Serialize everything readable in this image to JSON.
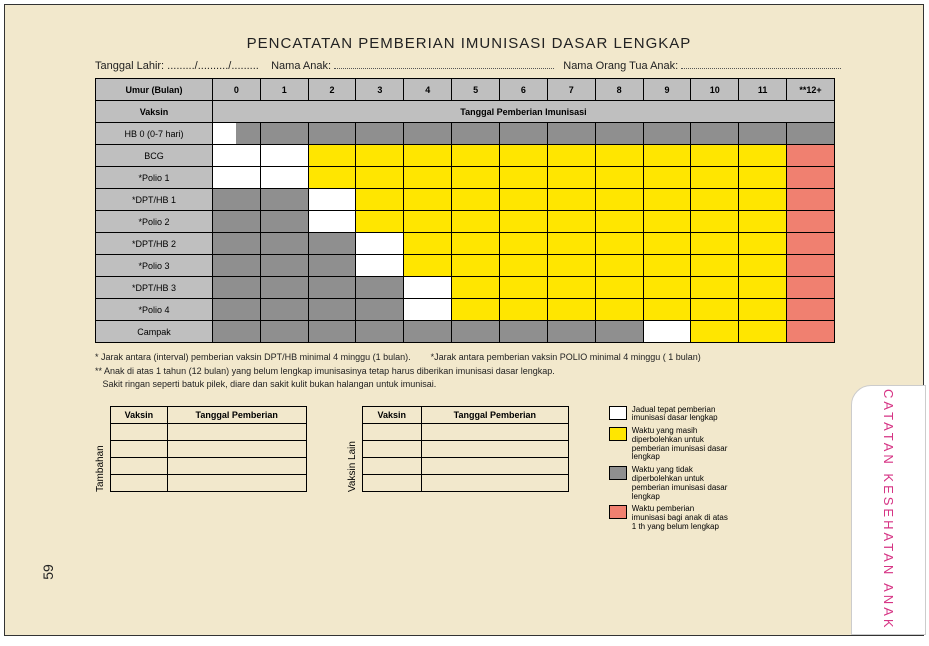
{
  "title": "PENCATATAN PEMBERIAN IMUNISASI DASAR LENGKAP",
  "header": {
    "birth_date_label": "Tanggal Lahir: ........./........../.........",
    "child_name_label": "Nama Anak:",
    "parent_name_label": "Nama Orang Tua Anak:"
  },
  "age_header": "Umur (Bulan)",
  "vaccine_header": "Vaksin",
  "schedule_header": "Tanggal Pemberian Imunisasi",
  "months": [
    "0",
    "1",
    "2",
    "3",
    "4",
    "5",
    "6",
    "7",
    "8",
    "9",
    "10",
    "11",
    "**12+"
  ],
  "colors": {
    "white": "#ffffff",
    "yellow": "#ffe600",
    "gray": "#8f8f8f",
    "salmon": "#f08070",
    "header_gray": "#bfbfbf",
    "page_bg": "#f2e8cc"
  },
  "vaccines": [
    {
      "name": "HB 0 (0-7 hari)",
      "cells": [
        "half-wg",
        "gray",
        "gray",
        "gray",
        "gray",
        "gray",
        "gray",
        "gray",
        "gray",
        "gray",
        "gray",
        "gray",
        "gray"
      ]
    },
    {
      "name": "BCG",
      "cells": [
        "white",
        "white",
        "yellow",
        "yellow",
        "yellow",
        "yellow",
        "yellow",
        "yellow",
        "yellow",
        "yellow",
        "yellow",
        "yellow",
        "salmon"
      ]
    },
    {
      "name": "*Polio 1",
      "cells": [
        "white",
        "white",
        "yellow",
        "yellow",
        "yellow",
        "yellow",
        "yellow",
        "yellow",
        "yellow",
        "yellow",
        "yellow",
        "yellow",
        "salmon"
      ]
    },
    {
      "name": "*DPT/HB 1",
      "cells": [
        "gray",
        "gray",
        "white",
        "yellow",
        "yellow",
        "yellow",
        "yellow",
        "yellow",
        "yellow",
        "yellow",
        "yellow",
        "yellow",
        "salmon"
      ]
    },
    {
      "name": "*Polio 2",
      "cells": [
        "gray",
        "gray",
        "white",
        "yellow",
        "yellow",
        "yellow",
        "yellow",
        "yellow",
        "yellow",
        "yellow",
        "yellow",
        "yellow",
        "salmon"
      ]
    },
    {
      "name": "*DPT/HB 2",
      "cells": [
        "gray",
        "gray",
        "gray",
        "white",
        "yellow",
        "yellow",
        "yellow",
        "yellow",
        "yellow",
        "yellow",
        "yellow",
        "yellow",
        "salmon"
      ]
    },
    {
      "name": "*Polio 3",
      "cells": [
        "gray",
        "gray",
        "gray",
        "white",
        "yellow",
        "yellow",
        "yellow",
        "yellow",
        "yellow",
        "yellow",
        "yellow",
        "yellow",
        "salmon"
      ]
    },
    {
      "name": "*DPT/HB 3",
      "cells": [
        "gray",
        "gray",
        "gray",
        "gray",
        "white",
        "yellow",
        "yellow",
        "yellow",
        "yellow",
        "yellow",
        "yellow",
        "yellow",
        "salmon"
      ]
    },
    {
      "name": "*Polio 4",
      "cells": [
        "gray",
        "gray",
        "gray",
        "gray",
        "white",
        "yellow",
        "yellow",
        "yellow",
        "yellow",
        "yellow",
        "yellow",
        "yellow",
        "salmon"
      ]
    },
    {
      "name": "Campak",
      "cells": [
        "gray",
        "gray",
        "gray",
        "gray",
        "gray",
        "gray",
        "gray",
        "gray",
        "gray",
        "white",
        "yellow",
        "yellow",
        "salmon"
      ]
    }
  ],
  "notes": {
    "n1": "* Jarak antara (interval) pemberian vaksin DPT/HB minimal 4 minggu (1 bulan).",
    "n2": "*Jarak antara pemberian vaksin POLIO minimal 4 minggu ( 1 bulan)",
    "n3": "** Anak di atas 1 tahun (12 bulan) yang belum lengkap imunisasinya tetap harus diberikan imunisasi dasar lengkap.",
    "n4": "Sakit ringan seperti batuk pilek, diare dan sakit kulit bukan halangan untuk imunisai."
  },
  "mini_tables": {
    "vaccine_col": "Vaksin",
    "date_col": "Tanggal Pemberian",
    "labels": [
      "Tambahan",
      "Vaksin Lain"
    ]
  },
  "legend": {
    "white": "Jadual tepat pemberian imunisasi dasar lengkap",
    "yellow": "Waktu yang masih diperbolehkan untuk pemberian imunisasi dasar lengkap",
    "gray": "Waktu yang tidak diperbolehkan untuk pemberian imunisasi dasar lengkap",
    "salmon": "Waktu pemberian imunisasi bagi anak di atas 1 th yang belum lengkap"
  },
  "tab_label": "CATATAN KESEHATAN ANAK",
  "page_number": "59"
}
